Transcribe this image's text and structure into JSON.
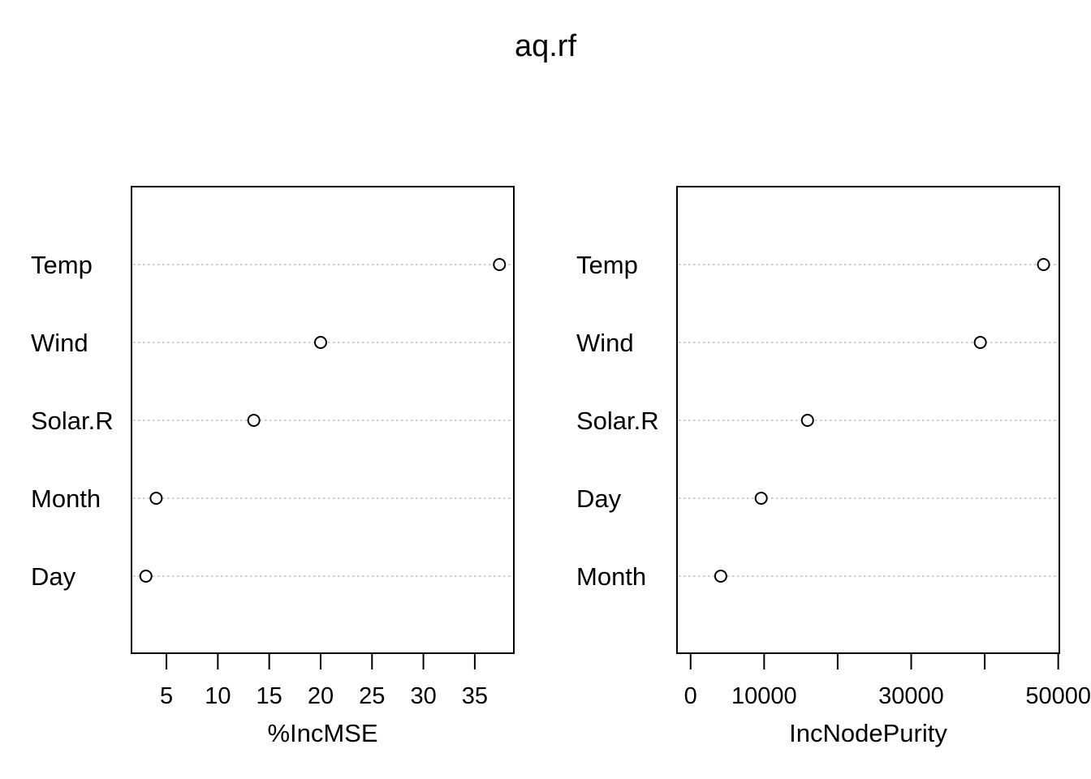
{
  "chart_data": {
    "title": "aq.rf",
    "type": "scatter",
    "panels": [
      {
        "xlabel": "%IncMSE",
        "categories": [
          "Temp",
          "Wind",
          "Solar.R",
          "Month",
          "Day"
        ],
        "values": [
          37.4,
          20.0,
          13.5,
          4.0,
          3.0
        ],
        "xlim": [
          1.6,
          38.8
        ],
        "ticks": [
          5,
          10,
          15,
          20,
          25,
          30,
          35
        ],
        "tick_labels": [
          "5",
          "10",
          "15",
          "20",
          "25",
          "30",
          "35"
        ],
        "grid": "dotted-horizontal"
      },
      {
        "xlabel": "IncNodePurity",
        "categories": [
          "Temp",
          "Wind",
          "Solar.R",
          "Day",
          "Month"
        ],
        "values": [
          48000,
          39400,
          15900,
          9600,
          4100
        ],
        "xlim": [
          -1850,
          50150
        ],
        "ticks": [
          0,
          10000,
          20000,
          30000,
          40000,
          50000
        ],
        "tick_labels": [
          "0",
          "10000",
          "",
          "30000",
          "",
          "50000"
        ],
        "grid": "dotted-horizontal"
      }
    ]
  }
}
